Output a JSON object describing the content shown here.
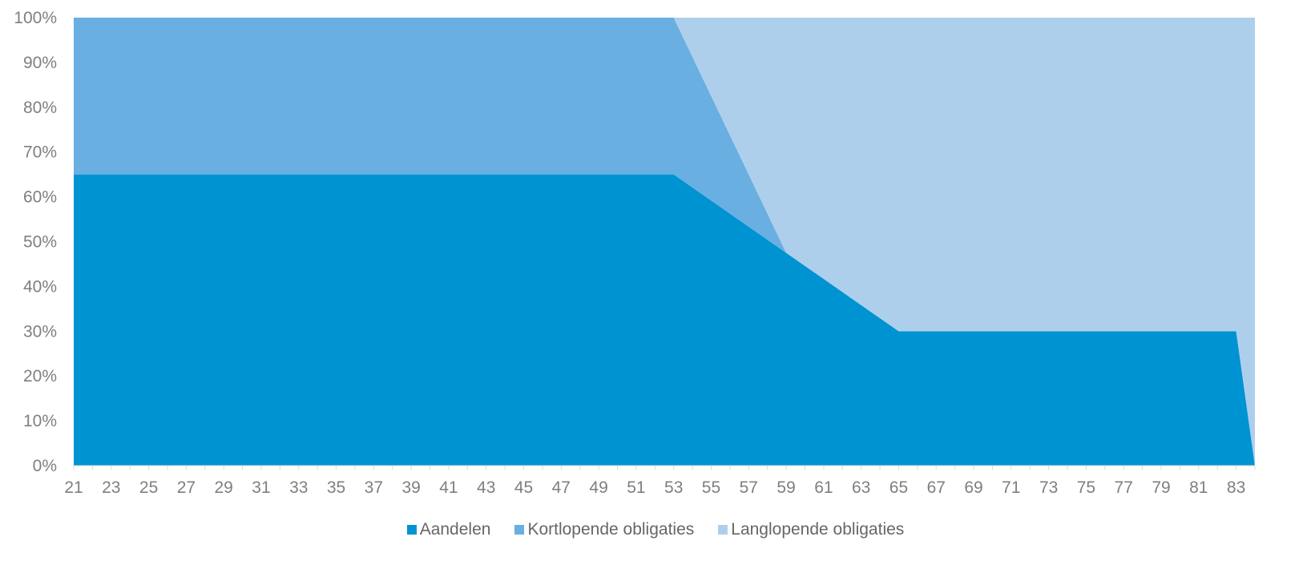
{
  "chart_data": {
    "type": "area",
    "stacked": true,
    "x": [
      21,
      23,
      25,
      27,
      29,
      31,
      33,
      35,
      37,
      39,
      41,
      43,
      45,
      47,
      49,
      51,
      53,
      55,
      57,
      59,
      61,
      63,
      65,
      67,
      69,
      71,
      73,
      75,
      77,
      79,
      81,
      83,
      84
    ],
    "x_tick_labels": [
      "21",
      "23",
      "25",
      "27",
      "29",
      "31",
      "33",
      "35",
      "37",
      "39",
      "41",
      "43",
      "45",
      "47",
      "49",
      "51",
      "53",
      "55",
      "57",
      "59",
      "61",
      "63",
      "65",
      "67",
      "69",
      "71",
      "73",
      "75",
      "77",
      "79",
      "81",
      "83"
    ],
    "y_tick_labels": [
      "0%",
      "10%",
      "20%",
      "30%",
      "40%",
      "50%",
      "60%",
      "70%",
      "80%",
      "90%",
      "100%"
    ],
    "ylim": [
      0,
      100
    ],
    "grid": false,
    "legend_position": "bottom",
    "series": [
      {
        "name": "Aandelen",
        "color": "#0093d2",
        "values": [
          65,
          65,
          65,
          65,
          65,
          65,
          65,
          65,
          65,
          65,
          65,
          65,
          65,
          65,
          65,
          65,
          65,
          59.17,
          53.33,
          47.5,
          41.67,
          35.83,
          30,
          30,
          30,
          30,
          30,
          30,
          30,
          30,
          30,
          30,
          0
        ]
      },
      {
        "name": "Kortlopende obligaties",
        "color": "#69afe2",
        "values": [
          35,
          35,
          35,
          35,
          35,
          35,
          35,
          35,
          35,
          35,
          35,
          35,
          35,
          35,
          35,
          35,
          35,
          23.33,
          11.67,
          0,
          0,
          0,
          0,
          0,
          0,
          0,
          0,
          0,
          0,
          0,
          0,
          0,
          0
        ]
      },
      {
        "name": "Langlopende obligaties",
        "color": "#aecfec",
        "values": [
          0,
          0,
          0,
          0,
          0,
          0,
          0,
          0,
          0,
          0,
          0,
          0,
          0,
          0,
          0,
          0,
          0,
          17.5,
          35,
          52.5,
          58.33,
          64.17,
          70,
          70,
          70,
          70,
          70,
          70,
          70,
          70,
          70,
          70,
          100
        ]
      }
    ]
  }
}
